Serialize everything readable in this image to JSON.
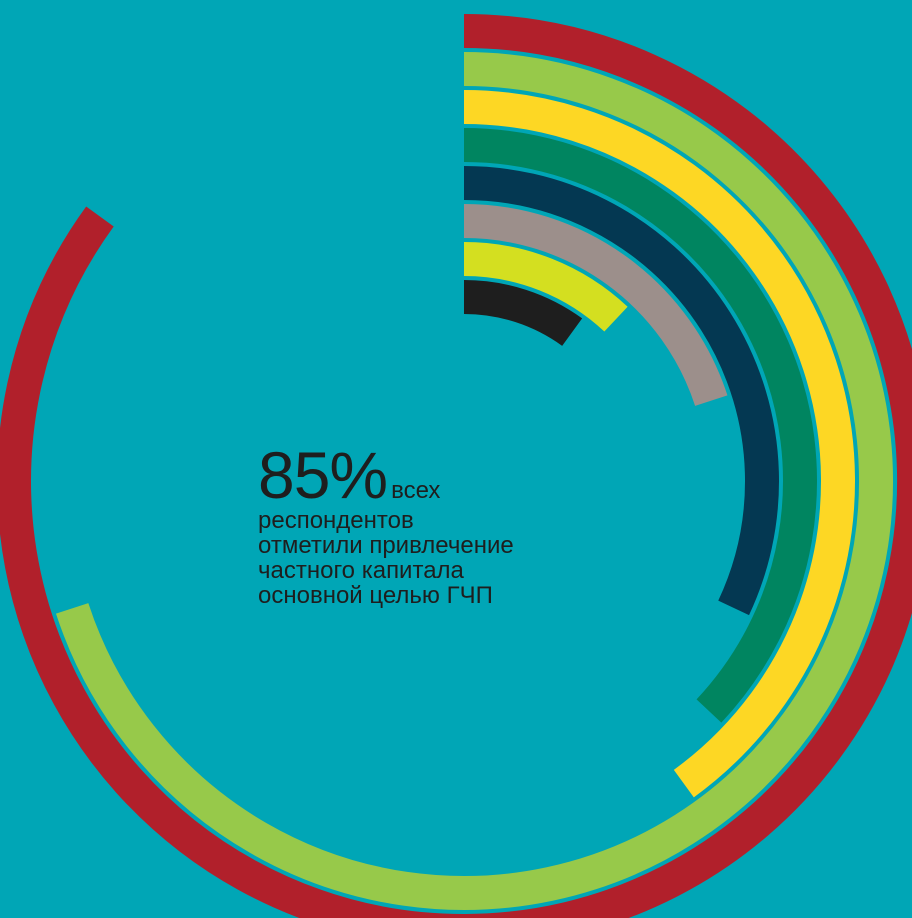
{
  "chart_data": {
    "type": "radial_bar",
    "title": "",
    "headline": {
      "value": "85%",
      "suffix": "всех",
      "lines": [
        "респондентов",
        "отметили привлечение",
        "частного капитала",
        "основной целью ГЧП"
      ]
    },
    "series": [
      {
        "value": 85,
        "color": "#b1202b"
      },
      {
        "value": 70,
        "color": "#97c94a"
      },
      {
        "value": 40,
        "color": "#fdd724"
      },
      {
        "value": 37,
        "color": "#008560"
      },
      {
        "value": 32,
        "color": "#043852"
      },
      {
        "value": 20,
        "color": "#9c8f8b"
      },
      {
        "value": 12,
        "color": "#d4df20"
      },
      {
        "value": 10,
        "color": "#1e1e1e"
      }
    ],
    "max": 100
  },
  "colors": {
    "background": "#00a6b6",
    "text": "#1e1e1e"
  }
}
